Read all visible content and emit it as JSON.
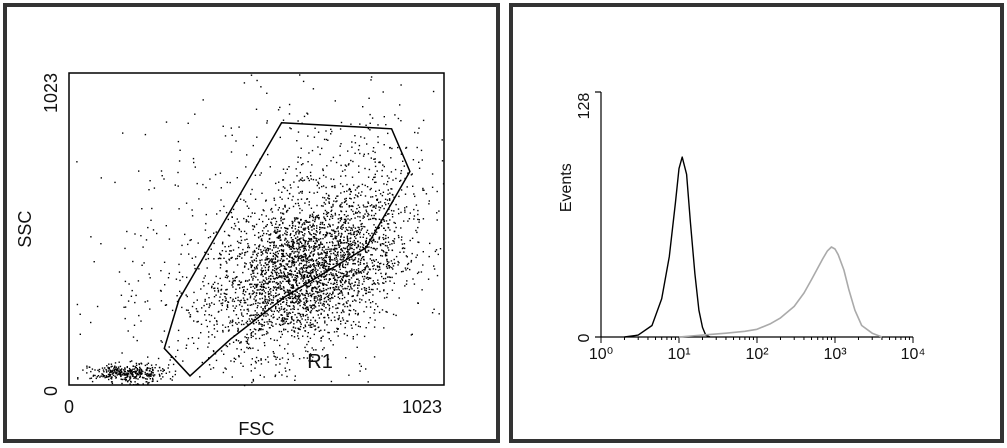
{
  "chart_data": [
    {
      "type": "scatter",
      "xlabel": "FSC",
      "ylabel": "SSC",
      "xlim": [
        0,
        1023
      ],
      "ylim": [
        0,
        1023
      ],
      "x_ticks": [
        "0",
        "1023"
      ],
      "y_ticks": [
        "0",
        "1023"
      ],
      "gate": {
        "name": "R1",
        "polygon": [
          [
            580,
            860
          ],
          [
            880,
            840
          ],
          [
            930,
            700
          ],
          [
            810,
            450
          ],
          [
            590,
            290
          ],
          [
            440,
            150
          ],
          [
            330,
            30
          ],
          [
            260,
            120
          ],
          [
            300,
            280
          ]
        ]
      },
      "populations": [
        {
          "cx": 640,
          "cy": 360,
          "sx": 130,
          "sy": 120,
          "count": 2400,
          "rho": 0.35
        },
        {
          "cx": 700,
          "cy": 500,
          "sx": 150,
          "sy": 180,
          "count": 900,
          "rho": 0.45
        },
        {
          "cx": 160,
          "cy": 40,
          "sx": 50,
          "sy": 15,
          "count": 350,
          "rho": 0.0
        },
        {
          "cx": 500,
          "cy": 450,
          "sx": 260,
          "sy": 300,
          "count": 450,
          "rho": 0.3
        }
      ],
      "point_color": "#000000"
    },
    {
      "type": "line",
      "xlabel": "",
      "ylabel": "Events",
      "xscale": "log",
      "xlim": [
        1,
        10000
      ],
      "ylim": [
        0,
        128
      ],
      "x_ticks": [
        "10⁰",
        "10¹",
        "10²",
        "10³",
        "10⁴"
      ],
      "y_ticks": [
        "0",
        "128"
      ],
      "series": [
        {
          "color": "#000000",
          "x": [
            2.0,
            3.0,
            4.5,
            6.0,
            7.5,
            9.0,
            10.0,
            11.0,
            12.5,
            14.0,
            16.0,
            18.0,
            20.0,
            22.0,
            25.0
          ],
          "y": [
            0,
            1,
            6,
            20,
            42,
            70,
            88,
            94,
            85,
            60,
            33,
            14,
            5,
            1,
            0
          ]
        },
        {
          "color": "#aaaaaa",
          "x": [
            10,
            20,
            40,
            70,
            100,
            150,
            200,
            300,
            400,
            500,
            600,
            700,
            800,
            900,
            1000,
            1100,
            1300,
            1500,
            1800,
            2200,
            3000,
            4000
          ],
          "y": [
            0,
            1,
            2,
            3,
            4,
            7,
            10,
            16,
            23,
            30,
            36,
            41,
            45,
            47,
            46,
            43,
            35,
            25,
            14,
            6,
            2,
            0
          ]
        }
      ]
    }
  ]
}
